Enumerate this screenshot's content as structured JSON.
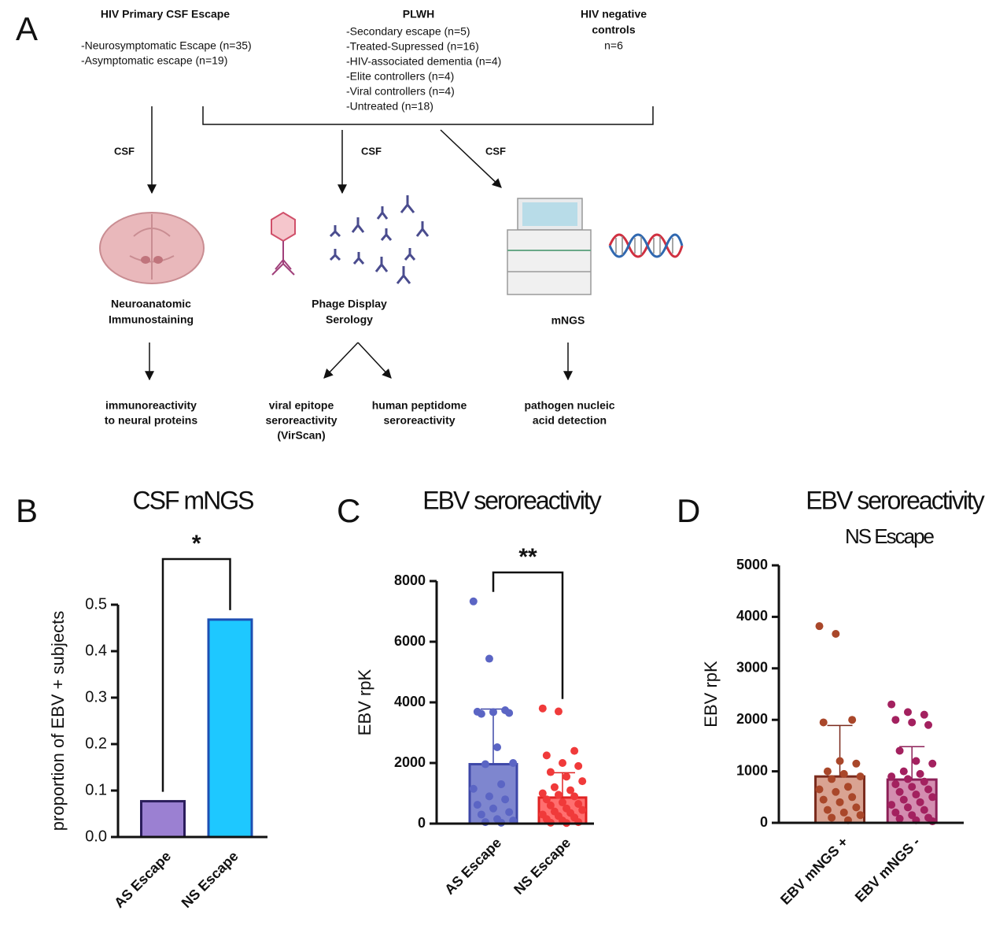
{
  "diagram": {
    "label": "A",
    "groups": [
      {
        "title": [
          "HIV Primary CSF Escape"
        ],
        "items": [
          "-Neurosymptomatic Escape (n=35)",
          "-Asymptomatic escape (n=19)"
        ]
      },
      {
        "title": [
          "PLWH"
        ],
        "items": [
          "-Secondary escape (n=5)",
          "-Treated-Supressed (n=16)",
          "-HIV-associated dementia (n=4)",
          "-Elite controllers (n=4)",
          "-Viral controllers (n=4)",
          "-Untreated (n=18)"
        ]
      },
      {
        "title": [
          "HIV negative",
          "controls"
        ],
        "items": [
          "n=6"
        ]
      }
    ],
    "sample_labels": [
      "CSF",
      "CSF",
      "CSF"
    ],
    "methods": [
      [
        "Neuroanatomic",
        "Immunostaining"
      ],
      [
        "Phage Display",
        "Serology"
      ],
      [
        "mNGS"
      ]
    ],
    "outcomes": [
      [
        "immunoreactivity",
        "to neural proteins"
      ],
      [
        "viral epitope",
        "seroreactivity",
        "(VirScan)"
      ],
      [
        "human peptidome",
        "seroreactivity"
      ],
      [
        "pathogen nucleic",
        "acid detection"
      ]
    ]
  },
  "chart_data": [
    {
      "type": "bar",
      "panel": "B",
      "title": "CSF mNGS",
      "ylabel": "proportion of EBV + subjects",
      "categories": [
        "AS Escape",
        "NS Escape"
      ],
      "values": [
        0.077,
        0.468
      ],
      "colors": [
        "#9b80d2",
        "#1ec8ff"
      ],
      "edge_colors": [
        "#2b1d5c",
        "#1d4fb3"
      ],
      "significance": "*",
      "ylim": [
        0,
        0.5
      ],
      "yticks": [
        {
          "value": 0,
          "label": "0.0"
        },
        0.1,
        0.2,
        0.3,
        0.4,
        0.5
      ]
    },
    {
      "type": "bar",
      "panel": "C",
      "title": "EBV seroreactivity",
      "ylabel": "EBV rpK",
      "categories": [
        "AS Escape",
        "NS Escape"
      ],
      "values": [
        1960,
        860
      ],
      "errors": [
        1820,
        820
      ],
      "points": [
        [
          7330,
          5440,
          3740,
          3690,
          3680,
          3650,
          3620,
          2520,
          2000,
          1960,
          1300,
          1150,
          900,
          800,
          620,
          500,
          380,
          300,
          150,
          100,
          50,
          30
        ],
        [
          3800,
          3700,
          2400,
          2250,
          2000,
          1900,
          1700,
          1550,
          1400,
          1200,
          1100,
          1000,
          950,
          900,
          800,
          700,
          650,
          600,
          500,
          450,
          400,
          350,
          300,
          250,
          200,
          150,
          100,
          50,
          30,
          20
        ]
      ],
      "colors": [
        "#7e86cf",
        "#ff6f6f"
      ],
      "edge_colors": [
        "#3d47a8",
        "#e02222"
      ],
      "point_colors": [
        "#5b65c4",
        "#f03a3a"
      ],
      "significance": "**",
      "ylim": [
        0,
        8000
      ],
      "yticks": [
        0,
        2000,
        4000,
        6000,
        8000
      ]
    },
    {
      "type": "bar",
      "panel": "D",
      "title": "EBV seroreactivity",
      "subtitle": "NS Escape",
      "ylabel": "EBV rpK",
      "categories": [
        "EBV mNGS +",
        "EBV mNGS -"
      ],
      "values": [
        900,
        840
      ],
      "errors": [
        990,
        640
      ],
      "points": [
        [
          3820,
          3670,
          2000,
          1950,
          1200,
          1150,
          1000,
          950,
          900,
          850,
          700,
          650,
          600,
          500,
          450,
          400,
          300,
          250,
          200,
          150,
          100,
          50
        ],
        [
          2300,
          2150,
          2100,
          2000,
          1950,
          1900,
          1400,
          1200,
          1150,
          1000,
          950,
          900,
          850,
          800,
          750,
          700,
          650,
          600,
          550,
          500,
          450,
          400,
          350,
          300,
          250,
          200,
          150,
          100,
          80,
          50,
          30
        ]
      ],
      "colors": [
        "#d9a392",
        "#d38db0"
      ],
      "edge_colors": [
        "#7a2a1c",
        "#8c1f57"
      ],
      "point_colors": [
        "#a9472a",
        "#a3215f"
      ],
      "ylim": [
        0,
        5000
      ],
      "yticks": [
        0,
        1000,
        2000,
        3000,
        4000,
        5000
      ]
    }
  ]
}
